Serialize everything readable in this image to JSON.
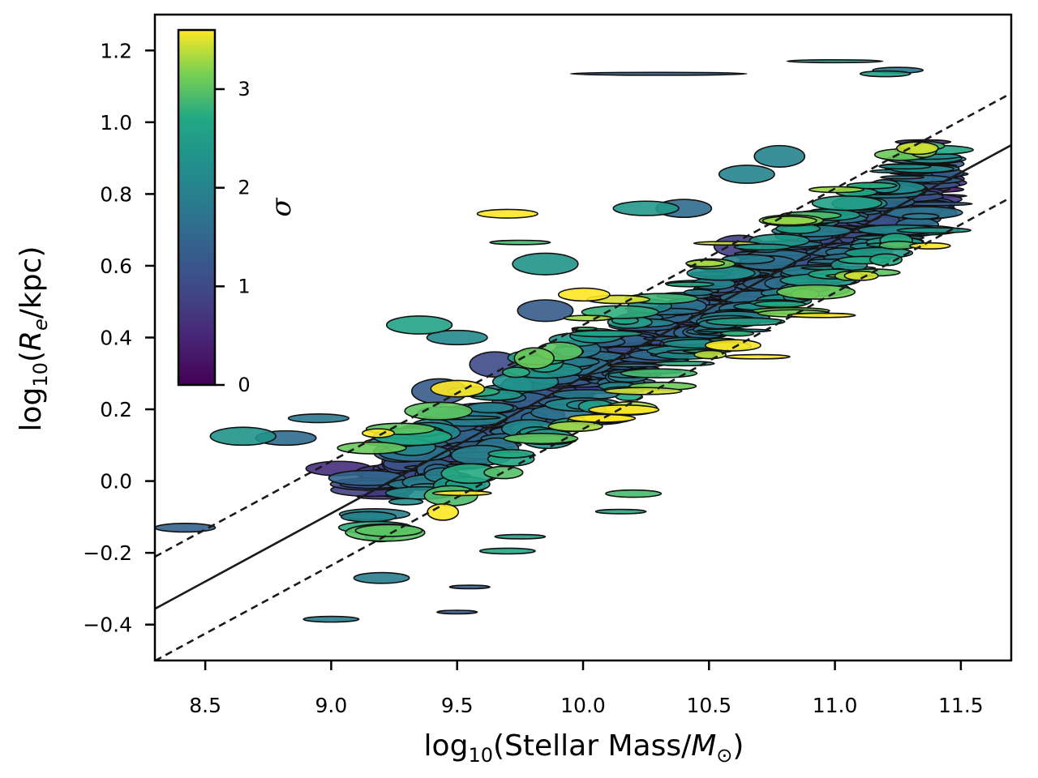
{
  "chart_data": {
    "type": "scatter",
    "marker": "ellipse",
    "xlabel_parts": {
      "pre": "log",
      "sub": "10",
      "mid": "(Stellar Mass/",
      "ital": "M",
      "sub2": "⊙",
      "post": ")"
    },
    "ylabel_parts": {
      "pre": "log",
      "sub": "10",
      "mid": "(",
      "ital": "R",
      "sub2": "e",
      "post": "/kpc)"
    },
    "xlim": [
      8.3,
      11.7
    ],
    "ylim": [
      -0.5,
      1.3
    ],
    "xticks": [
      {
        "v": 8.5,
        "label": "8.5"
      },
      {
        "v": 9.0,
        "label": "9.0"
      },
      {
        "v": 9.5,
        "label": "9.5"
      },
      {
        "v": 10.0,
        "label": "10.0"
      },
      {
        "v": 10.5,
        "label": "10.5"
      },
      {
        "v": 11.0,
        "label": "11.0"
      },
      {
        "v": 11.5,
        "label": "11.5"
      }
    ],
    "yticks": [
      {
        "v": -0.4,
        "label": "−0.4"
      },
      {
        "v": -0.2,
        "label": "−0.2"
      },
      {
        "v": 0.0,
        "label": "0.0"
      },
      {
        "v": 0.2,
        "label": "0.2"
      },
      {
        "v": 0.4,
        "label": "0.4"
      },
      {
        "v": 0.6,
        "label": "0.6"
      },
      {
        "v": 0.8,
        "label": "0.8"
      },
      {
        "v": 1.0,
        "label": "1.0"
      },
      {
        "v": 1.2,
        "label": "1.2"
      }
    ],
    "fit_line": {
      "slope": 0.38,
      "intercept": -3.51,
      "style": "solid"
    },
    "scatter_lines": [
      {
        "slope": 0.38,
        "intercept": -3.365,
        "style": "dashed"
      },
      {
        "slope": 0.38,
        "intercept": -3.655,
        "style": "dashed"
      }
    ],
    "colorbar": {
      "label": "σ",
      "colormap": "viridis",
      "range": [
        0,
        3.6
      ],
      "ticks": [
        {
          "v": 0,
          "label": "0"
        },
        {
          "v": 1,
          "label": "1"
        },
        {
          "v": 2,
          "label": "2"
        },
        {
          "v": 3,
          "label": "3"
        }
      ]
    },
    "grid": false,
    "points": [
      {
        "x": 8.42,
        "y": -0.13,
        "xerr": 0.12,
        "yerr": 0.012,
        "sigma": 1.4
      },
      {
        "x": 8.65,
        "y": 0.125,
        "xerr": 0.13,
        "yerr": 0.025,
        "sigma": 2.3
      },
      {
        "x": 8.82,
        "y": 0.12,
        "xerr": 0.12,
        "yerr": 0.02,
        "sigma": 1.6
      },
      {
        "x": 8.95,
        "y": 0.175,
        "xerr": 0.12,
        "yerr": 0.012,
        "sigma": 1.8
      },
      {
        "x": 9.03,
        "y": 0.035,
        "xerr": 0.13,
        "yerr": 0.02,
        "sigma": 0.6
      },
      {
        "x": 9.2,
        "y": -0.27,
        "xerr": 0.11,
        "yerr": 0.015,
        "sigma": 1.9
      },
      {
        "x": 9.0,
        "y": -0.385,
        "xerr": 0.11,
        "yerr": 0.008,
        "sigma": 1.9
      },
      {
        "x": 9.35,
        "y": 0.435,
        "xerr": 0.13,
        "yerr": 0.025,
        "sigma": 2.6
      },
      {
        "x": 9.5,
        "y": 0.4,
        "xerr": 0.12,
        "yerr": 0.02,
        "sigma": 2.1
      },
      {
        "x": 9.43,
        "y": 0.25,
        "xerr": 0.11,
        "yerr": 0.035,
        "sigma": 1.3
      },
      {
        "x": 9.7,
        "y": 0.745,
        "xerr": 0.12,
        "yerr": 0.012,
        "sigma": 3.6
      },
      {
        "x": 9.75,
        "y": 0.665,
        "xerr": 0.12,
        "yerr": 0.006,
        "sigma": 2.9
      },
      {
        "x": 9.85,
        "y": 0.605,
        "xerr": 0.13,
        "yerr": 0.03,
        "sigma": 2.3
      },
      {
        "x": 10.25,
        "y": 0.76,
        "xerr": 0.13,
        "yerr": 0.02,
        "sigma": 2.4
      },
      {
        "x": 10.78,
        "y": 0.905,
        "xerr": 0.1,
        "yerr": 0.03,
        "sigma": 2.0
      },
      {
        "x": 10.65,
        "y": 0.855,
        "xerr": 0.11,
        "yerr": 0.025,
        "sigma": 2.0
      },
      {
        "x": 10.4,
        "y": 0.76,
        "xerr": 0.11,
        "yerr": 0.025,
        "sigma": 1.6
      },
      {
        "x": 10.3,
        "y": 1.135,
        "xerr": 0.35,
        "yerr": 0.004,
        "sigma": 1.4
      },
      {
        "x": 11.0,
        "y": 1.17,
        "xerr": 0.19,
        "yerr": 0.004,
        "sigma": 2.5
      },
      {
        "x": 11.2,
        "y": 1.135,
        "xerr": 0.1,
        "yerr": 0.008,
        "sigma": 2.6
      },
      {
        "x": 11.25,
        "y": 1.145,
        "xerr": 0.1,
        "yerr": 0.008,
        "sigma": 1.8
      },
      {
        "x": 11.35,
        "y": 0.945,
        "xerr": 0.11,
        "yerr": 0.006,
        "sigma": 0.6
      },
      {
        "x": 9.65,
        "y": 0.325,
        "xerr": 0.1,
        "yerr": 0.035,
        "sigma": 1.0
      },
      {
        "x": 9.85,
        "y": 0.475,
        "xerr": 0.11,
        "yerr": 0.03,
        "sigma": 1.3
      },
      {
        "x": 10.62,
        "y": 0.655,
        "xerr": 0.1,
        "yerr": 0.03,
        "sigma": 0.8
      },
      {
        "x": 9.7,
        "y": -0.195,
        "xerr": 0.11,
        "yerr": 0.008,
        "sigma": 2.7
      },
      {
        "x": 9.75,
        "y": -0.155,
        "xerr": 0.1,
        "yerr": 0.006,
        "sigma": 2.5
      },
      {
        "x": 10.15,
        "y": -0.085,
        "xerr": 0.1,
        "yerr": 0.006,
        "sigma": 2.7
      },
      {
        "x": 10.2,
        "y": -0.035,
        "xerr": 0.11,
        "yerr": 0.01,
        "sigma": 2.9
      },
      {
        "x": 9.5,
        "y": -0.365,
        "xerr": 0.08,
        "yerr": 0.005,
        "sigma": 1.3
      },
      {
        "x": 9.55,
        "y": -0.295,
        "xerr": 0.08,
        "yerr": 0.005,
        "sigma": 1.3
      }
    ]
  }
}
